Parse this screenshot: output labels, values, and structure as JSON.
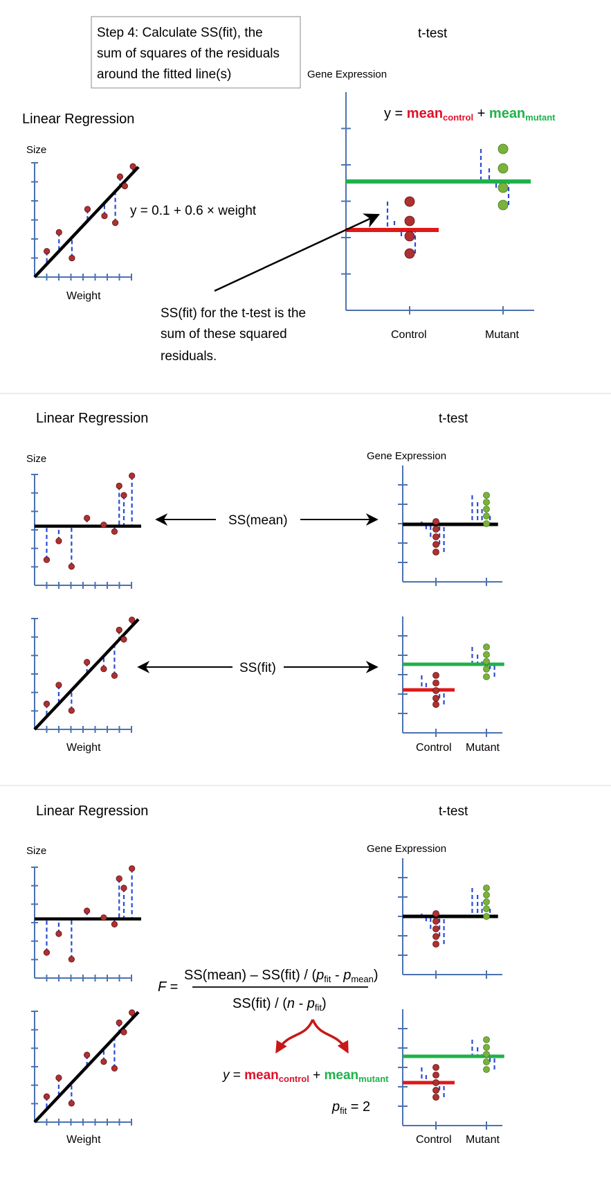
{
  "colors": {
    "axis": "#4a72b0",
    "residual": "#2a4bd7",
    "control_point": "#b03030",
    "mutant_point": "#7ab23a",
    "mean_control_line": "#e01818",
    "mean_mutant_line": "#1fb24a",
    "black_line": "#000000",
    "mean_control_text": "#e0102a",
    "mean_mutant_text": "#1fb24a",
    "panel_divider": "#e6e6e6"
  },
  "panel1": {
    "step_box_lines": [
      "Step 4: Calculate SS(fit), the",
      "sum of squares of the residuals",
      "around the fitted line(s)"
    ],
    "lr_title": "Linear Regression",
    "tt_title": "t-test",
    "size_label": "Size",
    "weight_label": "Weight",
    "gene_expression_label": "Gene Expression",
    "regression_equation": "y = 0.1 + 0.6 × weight",
    "tt_equation": {
      "y": "y = ",
      "mean1": "mean",
      "sub1": "control",
      "plus": " + ",
      "mean2": "mean",
      "sub2": "mutant"
    },
    "annotation_lines": [
      "SS(fit) for the t-test is the",
      "sum of these squared",
      "residuals."
    ],
    "control_label": "Control",
    "mutant_label": "Mutant"
  },
  "panel2": {
    "lr_title": "Linear Regression",
    "tt_title": "t-test",
    "size_label": "Size",
    "weight_label": "Weight",
    "gene_expression_label": "Gene Expression",
    "ss_mean_label": "SS(mean)",
    "ss_fit_label": "SS(fit)",
    "control_label": "Control",
    "mutant_label": "Mutant"
  },
  "panel3": {
    "lr_title": "Linear Regression",
    "tt_title": "t-test",
    "size_label": "Size",
    "weight_label": "Weight",
    "gene_expression_label": "Gene Expression",
    "f_symbol": "F =",
    "numerator": {
      "part1": "SS(mean) – SS(fit) / (",
      "p1": "p",
      "p1sub": "fit",
      "minus": " - ",
      "p2": "p",
      "p2sub": "mean",
      "close": ")"
    },
    "denominator": {
      "part1": "SS(fit) / (",
      "n": "n",
      "minus": " - ",
      "p": "p",
      "psub": "fit",
      "close": ")"
    },
    "tt_equation": {
      "y": "y",
      "eq": " = ",
      "mean1": "mean",
      "sub1": "control",
      "plus": " + ",
      "mean2": "mean",
      "sub2": "mutant"
    },
    "pfit_eq": {
      "p": "p",
      "sub": "fit",
      "rest": " = 2"
    },
    "control_label": "Control",
    "mutant_label": "Mutant"
  }
}
